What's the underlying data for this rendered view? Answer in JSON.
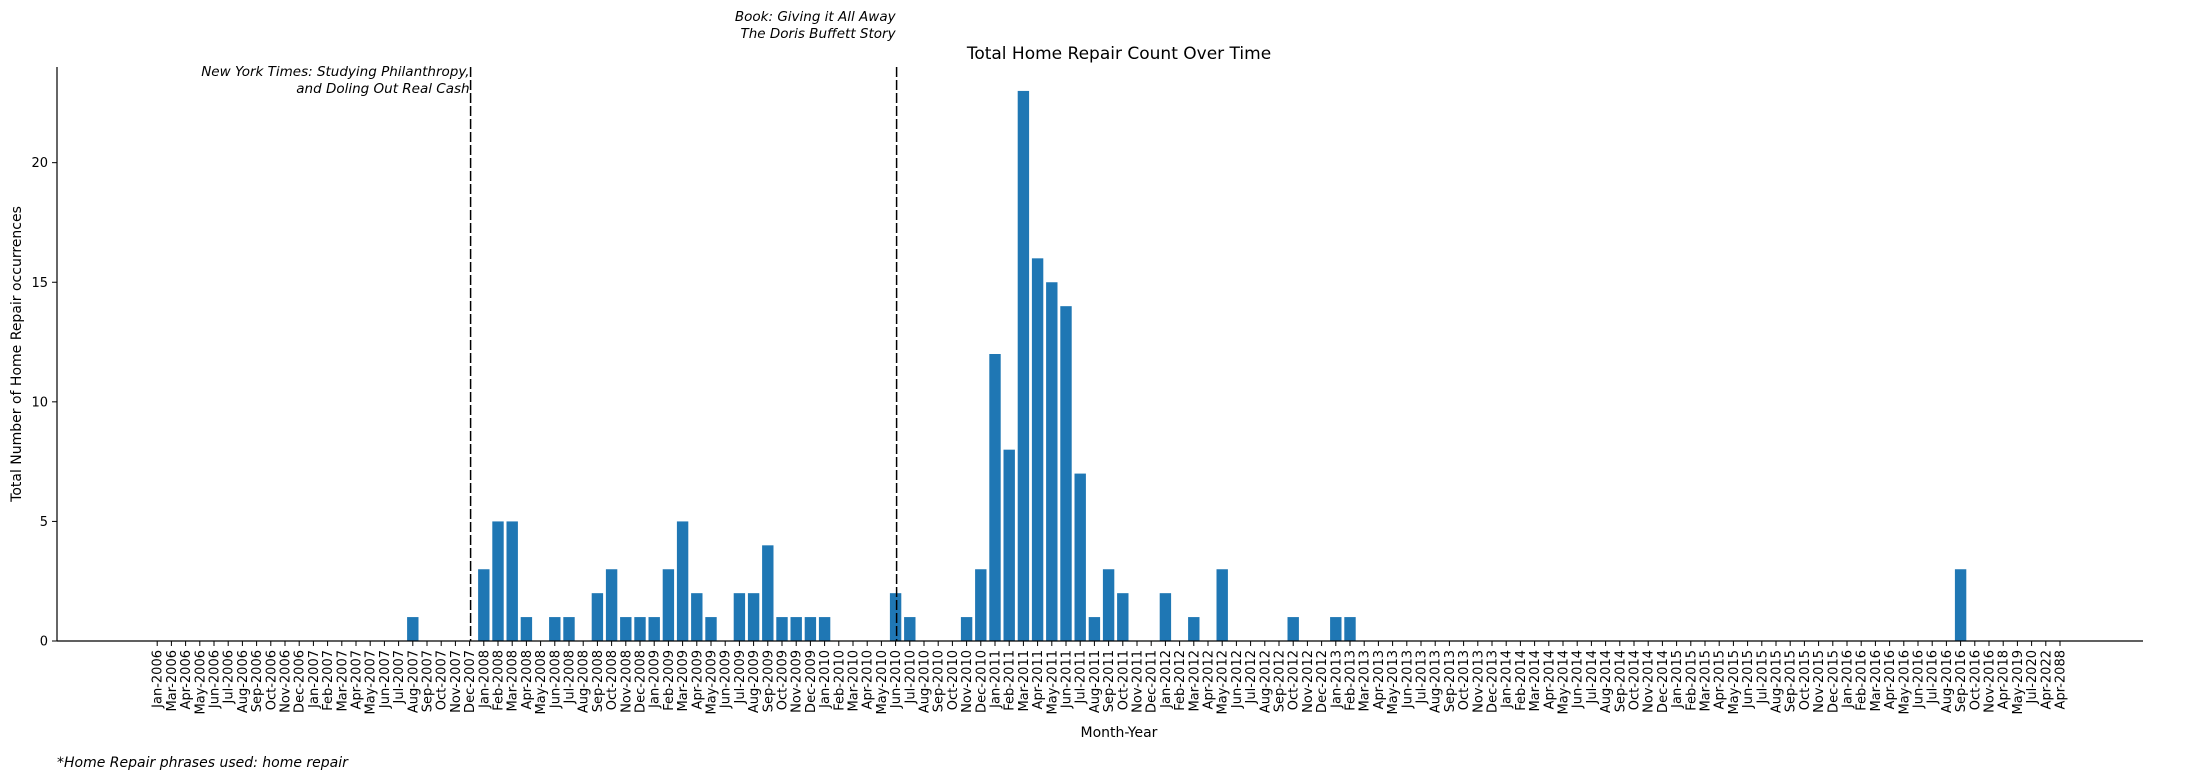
{
  "chart_data": {
    "type": "bar",
    "title": "Total Home Repair Count Over Time",
    "xlabel": "Month-Year",
    "ylabel": "Total Number of Home Repair occurrences",
    "ylim": [
      0,
      24
    ],
    "yticks": [
      0,
      5,
      10,
      15,
      20
    ],
    "grid": false,
    "bar_color": "#1f77b4",
    "categories": [
      "Jan-2006",
      "Mar-2006",
      "Apr-2006",
      "May-2006",
      "Jun-2006",
      "Jul-2006",
      "Aug-2006",
      "Sep-2006",
      "Oct-2006",
      "Nov-2006",
      "Dec-2006",
      "Jan-2007",
      "Feb-2007",
      "Mar-2007",
      "Apr-2007",
      "May-2007",
      "Jun-2007",
      "Jul-2007",
      "Aug-2007",
      "Sep-2007",
      "Oct-2007",
      "Nov-2007",
      "Dec-2007",
      "Jan-2008",
      "Feb-2008",
      "Mar-2008",
      "Apr-2008",
      "May-2008",
      "Jun-2008",
      "Jul-2008",
      "Aug-2008",
      "Sep-2008",
      "Oct-2008",
      "Nov-2008",
      "Dec-2008",
      "Jan-2009",
      "Feb-2009",
      "Mar-2009",
      "Apr-2009",
      "May-2009",
      "Jun-2009",
      "Jul-2009",
      "Aug-2009",
      "Sep-2009",
      "Oct-2009",
      "Nov-2009",
      "Dec-2009",
      "Jan-2010",
      "Feb-2010",
      "Mar-2010",
      "Apr-2010",
      "May-2010",
      "Jun-2010",
      "Jul-2010",
      "Aug-2010",
      "Sep-2010",
      "Oct-2010",
      "Nov-2010",
      "Dec-2010",
      "Jan-2011",
      "Feb-2011",
      "Mar-2011",
      "Apr-2011",
      "May-2011",
      "Jun-2011",
      "Jul-2011",
      "Aug-2011",
      "Sep-2011",
      "Oct-2011",
      "Nov-2011",
      "Dec-2011",
      "Jan-2012",
      "Feb-2012",
      "Mar-2012",
      "Apr-2012",
      "May-2012",
      "Jun-2012",
      "Jul-2012",
      "Aug-2012",
      "Sep-2012",
      "Oct-2012",
      "Nov-2012",
      "Dec-2012",
      "Jan-2013",
      "Feb-2013",
      "Mar-2013",
      "Apr-2013",
      "May-2013",
      "Jun-2013",
      "Jul-2013",
      "Aug-2013",
      "Sep-2013",
      "Oct-2013",
      "Nov-2013",
      "Dec-2013",
      "Jan-2014",
      "Feb-2014",
      "Mar-2014",
      "Apr-2014",
      "May-2014",
      "Jun-2014",
      "Jul-2014",
      "Aug-2014",
      "Sep-2014",
      "Oct-2014",
      "Nov-2014",
      "Dec-2014",
      "Jan-2015",
      "Feb-2015",
      "Mar-2015",
      "Apr-2015",
      "May-2015",
      "Jun-2015",
      "Jul-2015",
      "Aug-2015",
      "Sep-2015",
      "Oct-2015",
      "Nov-2015",
      "Dec-2015",
      "Jan-2016",
      "Feb-2016",
      "Mar-2016",
      "Apr-2016",
      "May-2016",
      "Jun-2016",
      "Jul-2016",
      "Aug-2016",
      "Sep-2016",
      "Oct-2016",
      "Nov-2016",
      "Apr-2018",
      "May-2019",
      "Jul-2020",
      "Apr-2022",
      "Apr-2088"
    ],
    "values": [
      0,
      0,
      0,
      0,
      0,
      0,
      0,
      0,
      0,
      0,
      0,
      0,
      0,
      0,
      0,
      0,
      0,
      0,
      1,
      0,
      0,
      0,
      0,
      3,
      5,
      5,
      1,
      0,
      1,
      1,
      0,
      2,
      3,
      1,
      1,
      1,
      3,
      5,
      2,
      1,
      0,
      2,
      2,
      4,
      1,
      1,
      1,
      1,
      0,
      0,
      0,
      0,
      2,
      1,
      0,
      0,
      0,
      1,
      3,
      12,
      8,
      23,
      16,
      15,
      14,
      7,
      1,
      3,
      2,
      0,
      0,
      2,
      0,
      1,
      0,
      3,
      0,
      0,
      0,
      0,
      1,
      0,
      0,
      1,
      1,
      0,
      0,
      0,
      0,
      0,
      0,
      0,
      0,
      0,
      0,
      0,
      0,
      0,
      0,
      0,
      0,
      0,
      0,
      0,
      0,
      0,
      0,
      0,
      0,
      0,
      0,
      0,
      0,
      0,
      0,
      0,
      0,
      0,
      0,
      0,
      0,
      0,
      0,
      0,
      0,
      0,
      0,
      3,
      0,
      0,
      0,
      0,
      0,
      0,
      0
    ],
    "annotations": [
      {
        "at": "Dec-2007",
        "lines": [
          "New York Times: Studying Philanthropy,",
          "and Doling Out Real Cash"
        ],
        "level": "upper"
      },
      {
        "at": "Jun-2010",
        "lines": [
          "Book: Giving it All Away",
          "The Doris Buffett Story"
        ],
        "level": "above-title"
      }
    ],
    "footnote": "*Home Repair phrases used: home repair"
  }
}
